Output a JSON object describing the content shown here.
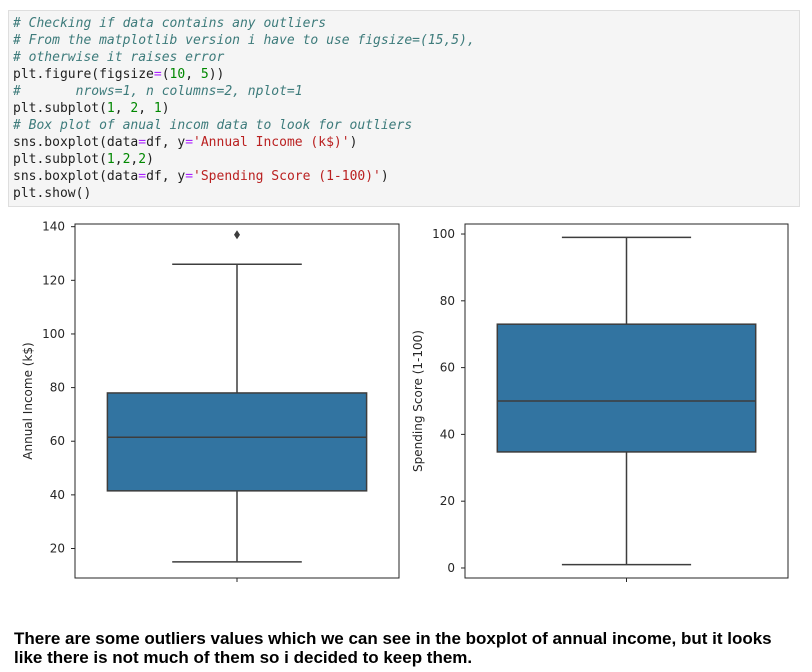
{
  "code_cell": {
    "lines": [
      [
        {
          "t": "# Checking if data contains any outliers",
          "c": "comment"
        }
      ],
      [
        {
          "t": "# From the matplotlib version i have to use figsize=(15,5),",
          "c": "comment"
        }
      ],
      [
        {
          "t": "# otherwise it raises error",
          "c": "comment"
        }
      ],
      [
        {
          "t": "plt.figure(figsize",
          "c": ""
        },
        {
          "t": "=",
          "c": "op"
        },
        {
          "t": "(",
          "c": ""
        },
        {
          "t": "10",
          "c": "num"
        },
        {
          "t": ", ",
          "c": ""
        },
        {
          "t": "5",
          "c": "num"
        },
        {
          "t": "))",
          "c": ""
        }
      ],
      [
        {
          "t": "#       nrows=1, n columns=2, nplot=1",
          "c": "comment"
        }
      ],
      [
        {
          "t": "plt.subplot(",
          "c": ""
        },
        {
          "t": "1",
          "c": "num"
        },
        {
          "t": ", ",
          "c": ""
        },
        {
          "t": "2",
          "c": "num"
        },
        {
          "t": ", ",
          "c": ""
        },
        {
          "t": "1",
          "c": "num"
        },
        {
          "t": ")",
          "c": ""
        }
      ],
      [
        {
          "t": "# Box plot of anual incom data to look for outliers",
          "c": "comment"
        }
      ],
      [
        {
          "t": "sns.boxplot(data",
          "c": ""
        },
        {
          "t": "=",
          "c": "op"
        },
        {
          "t": "df, y",
          "c": ""
        },
        {
          "t": "=",
          "c": "op"
        },
        {
          "t": "'Annual Income (k$)'",
          "c": "str"
        },
        {
          "t": ")",
          "c": ""
        }
      ],
      [
        {
          "t": "plt.subplot(",
          "c": ""
        },
        {
          "t": "1",
          "c": "num"
        },
        {
          "t": ",",
          "c": ""
        },
        {
          "t": "2",
          "c": "num"
        },
        {
          "t": ",",
          "c": ""
        },
        {
          "t": "2",
          "c": "num"
        },
        {
          "t": ")",
          "c": ""
        }
      ],
      [
        {
          "t": "sns.boxplot(data",
          "c": ""
        },
        {
          "t": "=",
          "c": "op"
        },
        {
          "t": "df, y",
          "c": ""
        },
        {
          "t": "=",
          "c": "op"
        },
        {
          "t": "'Spending Score (1-100)'",
          "c": "str"
        },
        {
          "t": ")",
          "c": ""
        }
      ],
      [
        {
          "t": "plt.show()",
          "c": ""
        }
      ]
    ]
  },
  "chart_data": [
    {
      "type": "box",
      "ylabel": "Annual Income (k$)",
      "ylim": [
        9,
        141
      ],
      "yticks": [
        20,
        40,
        60,
        80,
        100,
        120,
        140
      ],
      "box": {
        "whisker_low": 15,
        "q1": 41.5,
        "median": 61.5,
        "q3": 78,
        "whisker_high": 126
      },
      "outliers": [
        137
      ],
      "color": "#3274a1"
    },
    {
      "type": "box",
      "ylabel": "Spending Score (1-100)",
      "ylim": [
        -3,
        103
      ],
      "yticks": [
        0,
        20,
        40,
        60,
        80,
        100
      ],
      "box": {
        "whisker_low": 1,
        "q1": 34.75,
        "median": 50,
        "q3": 73,
        "whisker_high": 99
      },
      "outliers": [],
      "color": "#3274a1"
    }
  ],
  "note": {
    "text": "There are some outliers values which we can see in the boxplot of annual income, but it looks like there is not much of them so i decided to keep them."
  }
}
